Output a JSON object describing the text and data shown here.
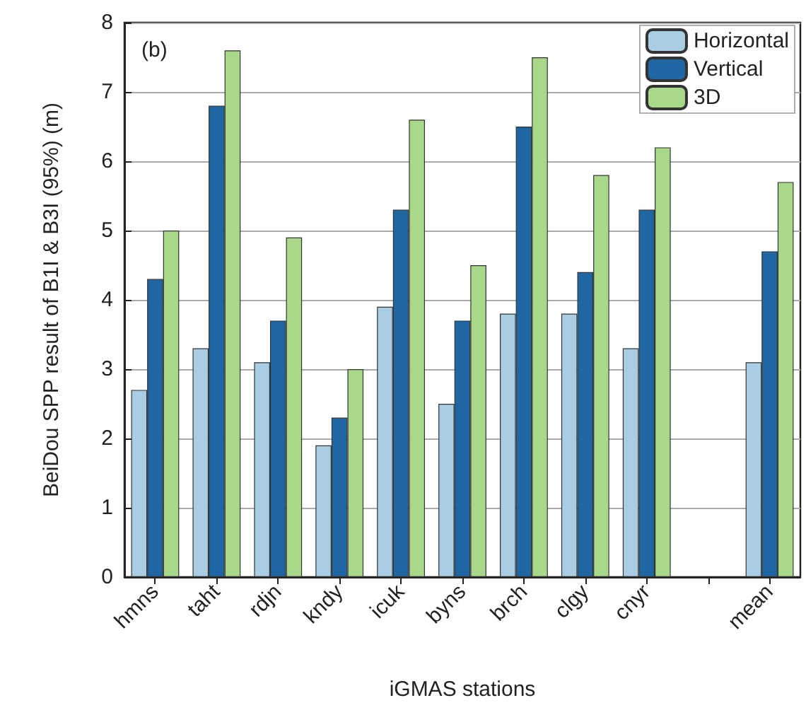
{
  "chart_data": {
    "type": "bar",
    "xlabel": "iGMAS stations",
    "ylabel": "BeiDou SPP result of B1I & B3I (95%) (m)",
    "annotations": [
      "(b)"
    ],
    "categories": [
      "hmns",
      "taht",
      "rdjn",
      "kndy",
      "icuk",
      "byns",
      "brch",
      "clgy",
      "cnyr",
      null,
      "mean"
    ],
    "series": [
      {
        "name": "Horizontal",
        "color": "#a9cde2",
        "values": [
          2.7,
          3.3,
          3.1,
          1.9,
          3.9,
          2.5,
          3.8,
          3.8,
          3.3,
          null,
          3.1
        ]
      },
      {
        "name": "Vertical",
        "color": "#1f67a3",
        "values": [
          4.3,
          6.8,
          3.7,
          2.3,
          5.3,
          3.7,
          6.5,
          4.4,
          5.3,
          null,
          4.7
        ]
      },
      {
        "name": "3D",
        "color": "#a8d889",
        "values": [
          5.0,
          7.6,
          4.9,
          3.0,
          6.6,
          4.5,
          7.5,
          5.8,
          6.2,
          null,
          5.7
        ]
      }
    ],
    "ylim": [
      0,
      8
    ],
    "yticks": [
      0,
      1,
      2,
      3,
      4,
      5,
      6,
      7,
      8
    ],
    "grid": "y",
    "legend": "top right"
  }
}
